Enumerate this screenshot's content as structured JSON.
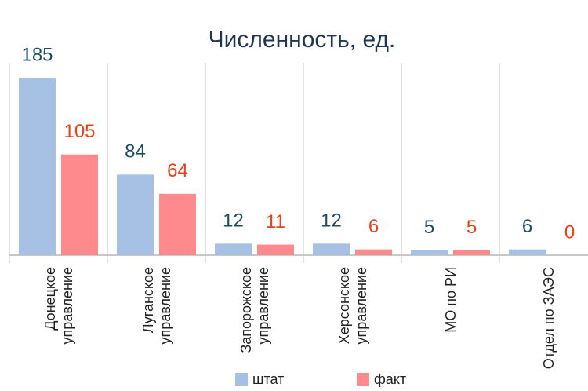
{
  "chart_data": {
    "type": "bar",
    "title": "Численность, ед.",
    "categories": [
      "Донецкое управление",
      "Луганское управление",
      "Запорожское управление",
      "Херсонское управление",
      "МО по РИ",
      "Отдел по ЗАЭС"
    ],
    "series": [
      {
        "name": "штат",
        "color": "#a6c1e4",
        "label_color": "#1f4e5f",
        "values": [
          185,
          84,
          12,
          12,
          5,
          6
        ]
      },
      {
        "name": "факт",
        "color": "#ff8a8e",
        "label_color": "#e8421a",
        "values": [
          105,
          64,
          11,
          6,
          5,
          0
        ]
      }
    ]
  }
}
